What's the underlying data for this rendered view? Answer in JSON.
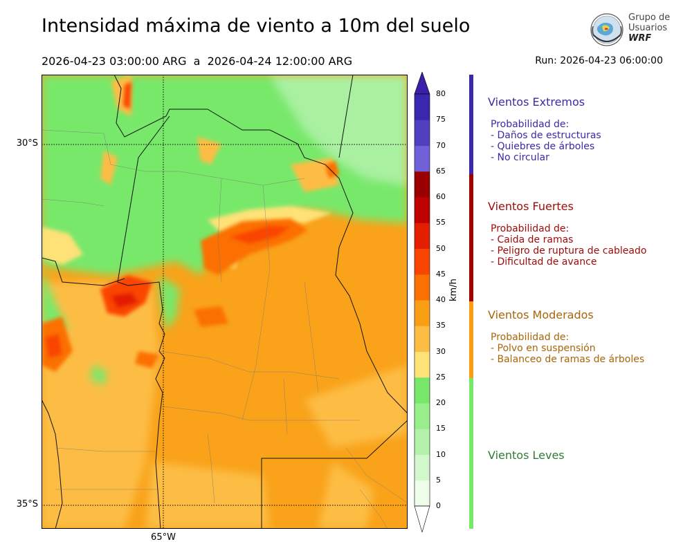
{
  "header": {
    "title": "Intensidad máxima de viento a 10m del suelo",
    "period": "2026-04-23 03:00:00 ARG  a  2026-04-24 12:00:00 ARG",
    "run": "Run: 2026-04-23 06:00:00"
  },
  "logo": {
    "line1": "Grupo de",
    "line2": "Usuarios",
    "line3": "WRF"
  },
  "map": {
    "lat_labels": [
      "30°S",
      "35°S"
    ],
    "lon_labels": [
      "65°W"
    ],
    "description_colors": {
      "calm": "#7cf27c",
      "light": "#a9f0a0",
      "moderate": "#f9a21a",
      "strong": "#f25a0a",
      "extreme": "#b8140a"
    }
  },
  "colorbar": {
    "unit": "km/h",
    "ticks": [
      "0",
      "5",
      "10",
      "15",
      "20",
      "25",
      "30",
      "35",
      "40",
      "45",
      "50",
      "55",
      "60",
      "65",
      "70",
      "75",
      "80"
    ],
    "colors": [
      "#eefde9",
      "#d3f7cd",
      "#b4f1ad",
      "#97ee8a",
      "#78e86a",
      "#ffe277",
      "#fdbd45",
      "#fa9f13",
      "#fb7000",
      "#fa4500",
      "#e31f00",
      "#bf0000",
      "#9a0000",
      "#7060d8",
      "#5040c0",
      "#3a27af"
    ],
    "under_color": "#ffffff",
    "over_color": "#3b1fa8"
  },
  "legend": {
    "extreme": {
      "title": "Vientos Extremos",
      "lines": [
        "Probabilidad de:",
        "- Daños de estructuras",
        "- Quiebres de árboles",
        "- No circular"
      ],
      "color": "#3a2aa8"
    },
    "strong": {
      "title": "Vientos Fuertes",
      "lines": [
        "Probabilidad de:",
        "- Caida de ramas",
        "- Peligro de ruptura de cableado",
        "- Dificultad de avance"
      ],
      "color": "#9e0a0a"
    },
    "moderate": {
      "title": "Vientos Moderados",
      "lines": [
        "Probabilidad de:",
        "- Polvo en suspensión",
        "- Balanceo de ramas de árboles"
      ],
      "color": "#a8650a"
    },
    "light": {
      "title": "Vientos Leves",
      "lines": [],
      "color": "#2e7d32"
    }
  }
}
